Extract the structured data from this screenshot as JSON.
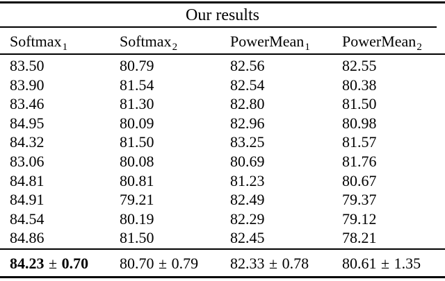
{
  "colors": {
    "background": "#ffffff",
    "text": "#000000",
    "rule": "#000000"
  },
  "table": {
    "title": "Our results",
    "columns": [
      {
        "base": "Softmax",
        "sub": "1"
      },
      {
        "base": "Softmax",
        "sub": "2"
      },
      {
        "base": "PowerMean",
        "sub": "1"
      },
      {
        "base": "PowerMean",
        "sub": "2"
      }
    ],
    "rows": [
      [
        "83.50",
        "80.79",
        "82.56",
        "82.55"
      ],
      [
        "83.90",
        "81.54",
        "82.54",
        "80.38"
      ],
      [
        "83.46",
        "81.30",
        "82.80",
        "81.50"
      ],
      [
        "84.95",
        "80.09",
        "82.96",
        "80.98"
      ],
      [
        "84.32",
        "81.50",
        "83.25",
        "81.57"
      ],
      [
        "83.06",
        "80.08",
        "80.69",
        "81.76"
      ],
      [
        "84.81",
        "80.81",
        "81.23",
        "80.67"
      ],
      [
        "84.91",
        "79.21",
        "82.49",
        "79.37"
      ],
      [
        "84.54",
        "80.19",
        "82.29",
        "79.12"
      ],
      [
        "84.86",
        "81.50",
        "82.45",
        "78.21"
      ]
    ],
    "summary": [
      {
        "mean": "84.23",
        "pm": "±",
        "std": "0.70",
        "bold": true
      },
      {
        "mean": "80.70",
        "pm": "±",
        "std": "0.79",
        "bold": false
      },
      {
        "mean": "82.33",
        "pm": "±",
        "std": "0.78",
        "bold": false
      },
      {
        "mean": "80.61",
        "pm": "±",
        "std": "1.35",
        "bold": false
      }
    ]
  }
}
